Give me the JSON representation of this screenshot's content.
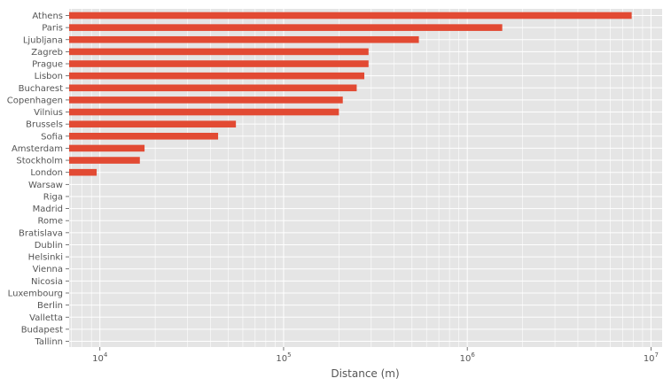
{
  "chart_data": {
    "type": "bar",
    "orientation": "horizontal",
    "xlabel": "Distance (m)",
    "ylabel": "",
    "x_scale": "log",
    "xlim": [
      6800,
      11500000
    ],
    "x_ticks": [
      {
        "value": 10000,
        "base": "10",
        "exp": "4"
      },
      {
        "value": 100000,
        "base": "10",
        "exp": "5"
      },
      {
        "value": 1000000,
        "base": "10",
        "exp": "6"
      },
      {
        "value": 10000000,
        "base": "10",
        "exp": "7"
      }
    ],
    "grid": true,
    "colors": {
      "bar": "#E24A33",
      "plot_bg": "#E5E5E5",
      "grid": "#FFFFFF",
      "text": "#555555"
    },
    "categories": [
      "Athens",
      "Paris",
      "Ljubljana",
      "Zagreb",
      "Prague",
      "Lisbon",
      "Bucharest",
      "Copenhagen",
      "Vilnius",
      "Brussels",
      "Sofia",
      "Amsterdam",
      "Stockholm",
      "London",
      "Warsaw",
      "Riga",
      "Madrid",
      "Rome",
      "Bratislava",
      "Dublin",
      "Helsinki",
      "Vienna",
      "Nicosia",
      "Luxembourg",
      "Berlin",
      "Valletta",
      "Budapest",
      "Tallinn"
    ],
    "values": [
      7850000,
      1550000,
      545000,
      290000,
      290000,
      275000,
      250000,
      210000,
      200000,
      55000,
      44000,
      17500,
      16500,
      9600,
      0,
      0,
      0,
      0,
      0,
      0,
      0,
      0,
      0,
      0,
      0,
      0,
      0,
      0
    ]
  }
}
